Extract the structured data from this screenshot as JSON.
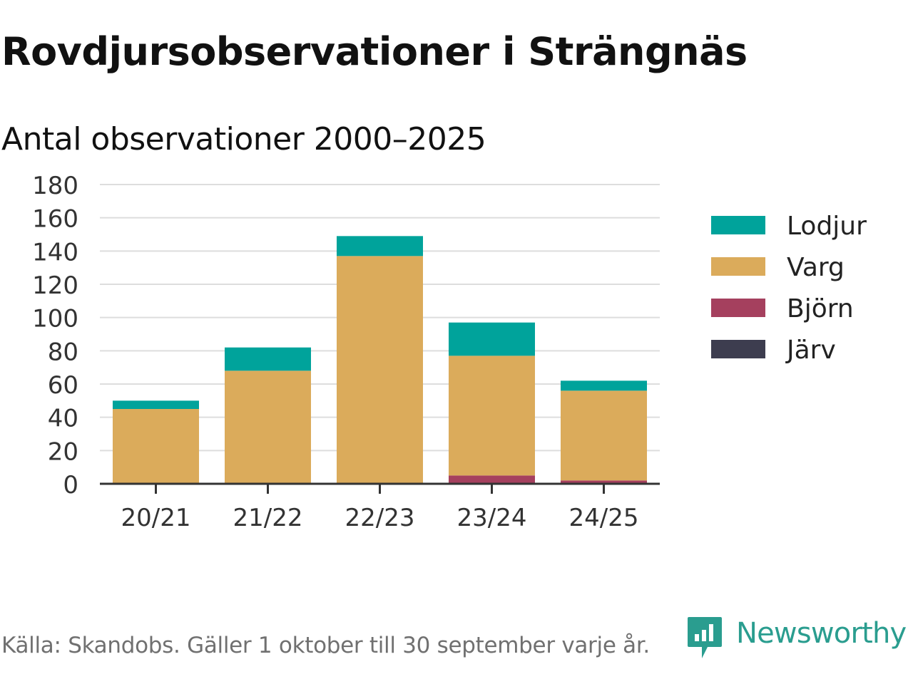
{
  "title": "Rovdjursobservationer i Strängnäs",
  "subtitle": "Antal observationer 2000–2025",
  "source": "Källa: Skandobs. Gäller 1 oktober till 30 september varje år.",
  "brand": {
    "name": "Newsworthy",
    "icon": "newsworthy-logo-icon",
    "color": "#2a9d8f"
  },
  "colors": {
    "Lodjur": "#00a39b",
    "Varg": "#dbab5b",
    "Björn": "#a5405e",
    "Järv": "#3d3d4f",
    "grid": "#dddddd",
    "axis": "#333333"
  },
  "chart_data": {
    "type": "bar",
    "stacked": true,
    "title": "Antal observationer 2000–2025",
    "xlabel": "",
    "ylabel": "",
    "ylim": [
      0,
      180
    ],
    "yticks": [
      0,
      20,
      40,
      60,
      80,
      100,
      120,
      140,
      160,
      180
    ],
    "grid": true,
    "legend_position": "right",
    "categories": [
      "20/21",
      "21/22",
      "22/23",
      "23/24",
      "24/25"
    ],
    "series": [
      {
        "name": "Järv",
        "values": [
          0,
          0,
          0,
          0,
          0
        ]
      },
      {
        "name": "Björn",
        "values": [
          0,
          0,
          0,
          5,
          2
        ]
      },
      {
        "name": "Varg",
        "values": [
          45,
          68,
          137,
          72,
          54
        ]
      },
      {
        "name": "Lodjur",
        "values": [
          5,
          14,
          12,
          20,
          6
        ]
      }
    ],
    "legend": [
      "Lodjur",
      "Varg",
      "Björn",
      "Järv"
    ]
  }
}
